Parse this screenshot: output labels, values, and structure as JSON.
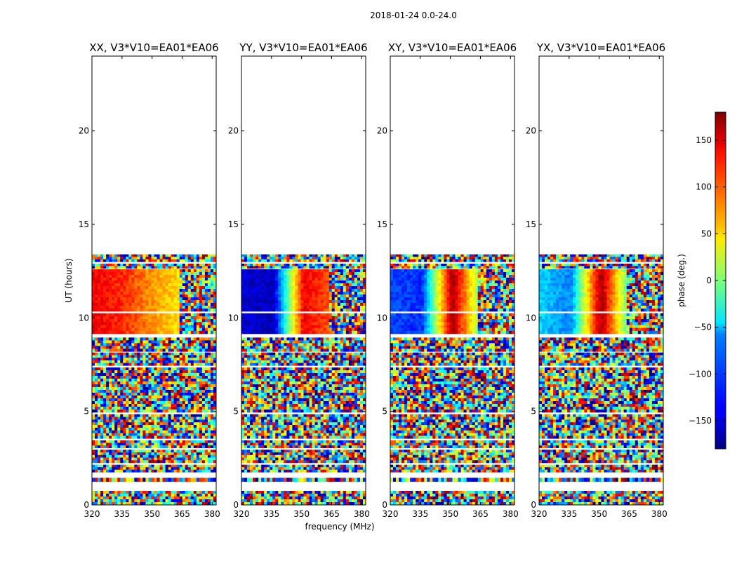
{
  "figure": {
    "suptitle": "2018-01-24 0.0-24.0",
    "xlabel": "frequency (MHz)",
    "ylabel": "UT (hours)",
    "colorbar_label": "phase (deg.)"
  },
  "chart_data": {
    "type": "heatmap",
    "value_quantity": "phase (deg.)",
    "color_scale": "jet",
    "color_range": [
      -180,
      180
    ],
    "colorbar_ticks": [
      {
        "value": 150,
        "label": "150"
      },
      {
        "value": 100,
        "label": "100"
      },
      {
        "value": 50,
        "label": "50"
      },
      {
        "value": 0,
        "label": "0"
      },
      {
        "value": -50,
        "label": "−50"
      },
      {
        "value": -100,
        "label": "−100"
      },
      {
        "value": -150,
        "label": "−150"
      }
    ],
    "xlim": [
      320,
      382
    ],
    "ylim": [
      0,
      24
    ],
    "x_ticks": [
      320,
      335,
      350,
      365,
      380
    ],
    "y_ticks": [
      0,
      5,
      10,
      15,
      20
    ],
    "data_bands_hours": [
      [
        0.0,
        0.75,
        "noise"
      ],
      [
        1.25,
        1.45,
        "noise"
      ],
      [
        1.75,
        2.15,
        "noise"
      ],
      [
        2.25,
        2.95,
        "noise"
      ],
      [
        3.05,
        3.45,
        "noise"
      ],
      [
        3.55,
        4.85,
        "noise"
      ],
      [
        4.95,
        7.35,
        "noise"
      ],
      [
        7.45,
        8.15,
        "noise"
      ],
      [
        8.2,
        8.95,
        "noise"
      ],
      [
        9.15,
        10.25,
        "gradient"
      ],
      [
        10.35,
        12.6,
        "gradient"
      ],
      [
        12.65,
        12.9,
        "noise"
      ],
      [
        13.0,
        13.4,
        "noise"
      ]
    ],
    "panels": [
      {
        "title": "XX, V3*V10=EA01*EA06",
        "baseline_phase_deg": [
          140,
          120,
          80,
          50,
          -10
        ]
      },
      {
        "title": "YY, V3*V10=EA01*EA06",
        "baseline_phase_deg": [
          -150,
          -160,
          140,
          100,
          -40
        ]
      },
      {
        "title": "XY, V3*V10=EA01*EA06",
        "baseline_phase_deg": [
          -110,
          -120,
          170,
          -20,
          40
        ]
      },
      {
        "title": "YX, V3*V10=EA01*EA06",
        "baseline_phase_deg": [
          -60,
          -90,
          170,
          -40,
          -20
        ]
      }
    ]
  },
  "colors": {
    "axis": "#000000",
    "background": "#ffffff"
  }
}
